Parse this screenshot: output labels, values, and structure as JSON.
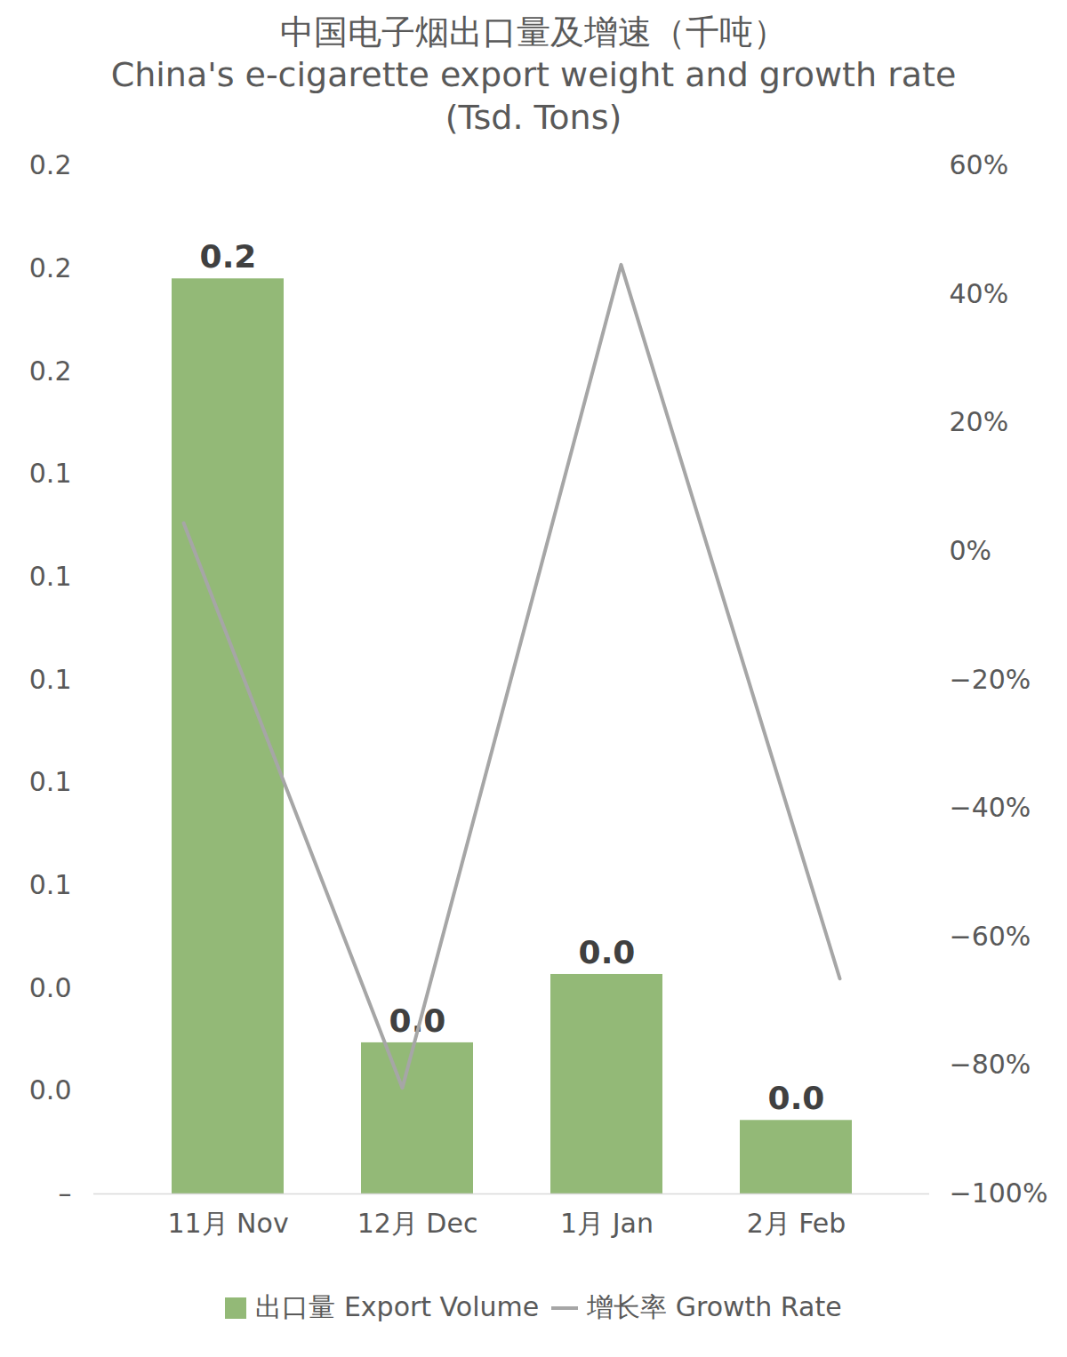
{
  "chart_data": {
    "type": "bar",
    "title": "中国电子烟出口量及增速（千吨）",
    "subtitle": "China's e-cigarette export weight and growth rate (Tsd. Tons)",
    "categories": [
      "11月 Nov",
      "12月 Dec",
      "1月 Jan",
      "2月 Feb"
    ],
    "series": [
      {
        "name": "出口量 Export Volume",
        "type": "bar",
        "color": "#93b977",
        "values": [
          0.178,
          0.0294,
          0.0427,
          0.0143
        ],
        "value_labels": [
          "0.2",
          "0.0",
          "0.0",
          "0.0"
        ],
        "data_labels": true
      },
      {
        "name": "增长率 Growth Rate",
        "type": "line",
        "axis": "y2",
        "color": "#a6a6a6",
        "values": [
          4.4,
          -83.5,
          44.6,
          -66.5
        ]
      }
    ],
    "ylim": [
      0,
      0.2
    ],
    "yticks": [
      {
        "value": 0,
        "label": "–"
      },
      {
        "value": 0.02,
        "label": "0.0"
      },
      {
        "value": 0.04,
        "label": "0.0"
      },
      {
        "value": 0.06,
        "label": "0.1"
      },
      {
        "value": 0.08,
        "label": "0.1"
      },
      0.1,
      {
        "value": 0.12,
        "label": "0.1"
      },
      {
        "value": 0.14,
        "label": "0.1"
      },
      {
        "value": 0.16,
        "label": "0.2"
      },
      {
        "value": 0.18,
        "label": "0.2"
      },
      0.2
    ],
    "y2lim": [
      -100,
      60
    ],
    "y2ticks": [
      {
        "value": -100,
        "label": "−100%"
      },
      {
        "value": -80,
        "label": "−80%"
      },
      {
        "value": -60,
        "label": "−60%"
      },
      {
        "value": -40,
        "label": "−40%"
      },
      {
        "value": -20,
        "label": "−20%"
      },
      {
        "value": 0,
        "label": "0%"
      },
      {
        "value": 20,
        "label": "20%"
      },
      {
        "value": 40,
        "label": "40%"
      },
      {
        "value": 60,
        "label": "60%"
      }
    ],
    "grid": false,
    "legend": "bottom"
  }
}
